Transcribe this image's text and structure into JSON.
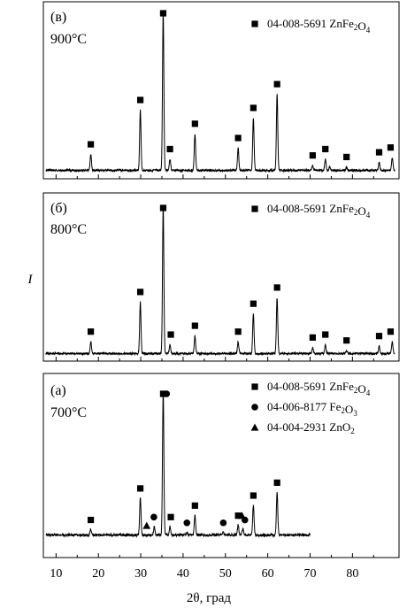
{
  "chart_data": {
    "type": "line",
    "xlabel": "2θ, град",
    "ylabel": "I",
    "xlim": [
      7,
      91
    ],
    "x_ticks": [
      10,
      20,
      30,
      40,
      50,
      60,
      70,
      80
    ],
    "panels": [
      {
        "letter": "(в)",
        "temperature": "900°C",
        "x_end": 90,
        "legend": [
          {
            "marker": "square",
            "label": "04-008-5691 ZnFe2O4"
          }
        ],
        "peaks": [
          {
            "x": 18.2,
            "h": 0.1
          },
          {
            "x": 29.9,
            "h": 0.38
          },
          {
            "x": 35.3,
            "h": 1.0
          },
          {
            "x": 36.9,
            "h": 0.07
          },
          {
            "x": 42.8,
            "h": 0.23
          },
          {
            "x": 53.0,
            "h": 0.14
          },
          {
            "x": 56.6,
            "h": 0.33
          },
          {
            "x": 62.2,
            "h": 0.48
          },
          {
            "x": 70.6,
            "h": 0.03
          },
          {
            "x": 73.6,
            "h": 0.07
          },
          {
            "x": 74.6,
            "h": 0.02
          },
          {
            "x": 78.6,
            "h": 0.02
          },
          {
            "x": 86.3,
            "h": 0.05
          },
          {
            "x": 89.4,
            "h": 0.08
          }
        ],
        "markers": [
          {
            "x": 18.2,
            "shape": "square"
          },
          {
            "x": 29.9,
            "shape": "square"
          },
          {
            "x": 35.3,
            "shape": "square"
          },
          {
            "x": 36.9,
            "shape": "square"
          },
          {
            "x": 42.8,
            "shape": "square"
          },
          {
            "x": 53.0,
            "shape": "square"
          },
          {
            "x": 56.6,
            "shape": "square"
          },
          {
            "x": 62.2,
            "shape": "square"
          },
          {
            "x": 70.6,
            "shape": "square"
          },
          {
            "x": 73.6,
            "shape": "square"
          },
          {
            "x": 78.6,
            "shape": "square"
          },
          {
            "x": 86.3,
            "shape": "square"
          },
          {
            "x": 89.0,
            "shape": "square"
          }
        ]
      },
      {
        "letter": "(б)",
        "temperature": "800°C",
        "x_end": 90,
        "legend": [
          {
            "marker": "square",
            "label": "04-008-5691 ZnFe2O4"
          }
        ],
        "peaks": [
          {
            "x": 18.2,
            "h": 0.08
          },
          {
            "x": 29.9,
            "h": 0.35
          },
          {
            "x": 35.3,
            "h": 1.0
          },
          {
            "x": 36.9,
            "h": 0.06
          },
          {
            "x": 42.8,
            "h": 0.12
          },
          {
            "x": 53.0,
            "h": 0.08
          },
          {
            "x": 56.6,
            "h": 0.27
          },
          {
            "x": 62.2,
            "h": 0.38
          },
          {
            "x": 70.6,
            "h": 0.04
          },
          {
            "x": 73.6,
            "h": 0.06
          },
          {
            "x": 78.6,
            "h": 0.02
          },
          {
            "x": 86.3,
            "h": 0.05
          },
          {
            "x": 89.4,
            "h": 0.08
          }
        ],
        "markers": [
          {
            "x": 18.2,
            "shape": "square"
          },
          {
            "x": 29.9,
            "shape": "square"
          },
          {
            "x": 35.3,
            "shape": "square"
          },
          {
            "x": 37.1,
            "shape": "square"
          },
          {
            "x": 42.8,
            "shape": "square"
          },
          {
            "x": 53.0,
            "shape": "square"
          },
          {
            "x": 56.6,
            "shape": "square"
          },
          {
            "x": 62.2,
            "shape": "square"
          },
          {
            "x": 70.6,
            "shape": "square"
          },
          {
            "x": 73.6,
            "shape": "square"
          },
          {
            "x": 78.6,
            "shape": "square"
          },
          {
            "x": 86.3,
            "shape": "square"
          },
          {
            "x": 89.0,
            "shape": "square"
          }
        ]
      },
      {
        "letter": "(a)",
        "temperature": "700°C",
        "x_end": 70,
        "legend": [
          {
            "marker": "square",
            "label": "04-008-5691 ZnFe2O4"
          },
          {
            "marker": "circle",
            "label": "04-006-8177 Fe2O3"
          },
          {
            "marker": "triangle",
            "label": "04-004-2931 ZnO2"
          }
        ],
        "peaks": [
          {
            "x": 18.2,
            "h": 0.04
          },
          {
            "x": 29.9,
            "h": 0.26
          },
          {
            "x": 33.2,
            "h": 0.06
          },
          {
            "x": 35.3,
            "h": 1.0
          },
          {
            "x": 36.9,
            "h": 0.06
          },
          {
            "x": 40.9,
            "h": 0.02
          },
          {
            "x": 42.8,
            "h": 0.14
          },
          {
            "x": 49.5,
            "h": 0.02
          },
          {
            "x": 53.0,
            "h": 0.07
          },
          {
            "x": 54.1,
            "h": 0.04
          },
          {
            "x": 56.6,
            "h": 0.21
          },
          {
            "x": 62.2,
            "h": 0.3
          }
        ],
        "markers": [
          {
            "x": 18.2,
            "shape": "square"
          },
          {
            "x": 29.9,
            "shape": "square"
          },
          {
            "x": 31.4,
            "shape": "triangle"
          },
          {
            "x": 33.1,
            "shape": "circle"
          },
          {
            "x": 35.3,
            "shape": "square"
          },
          {
            "x": 36.1,
            "shape": "circle"
          },
          {
            "x": 37.1,
            "shape": "square"
          },
          {
            "x": 40.9,
            "shape": "circle"
          },
          {
            "x": 42.8,
            "shape": "square"
          },
          {
            "x": 49.5,
            "shape": "circle"
          },
          {
            "x": 53.0,
            "shape": "square"
          },
          {
            "x": 53.9,
            "shape": "triangle"
          },
          {
            "x": 54.6,
            "shape": "circle"
          },
          {
            "x": 56.6,
            "shape": "square"
          },
          {
            "x": 62.2,
            "shape": "square"
          }
        ]
      }
    ]
  }
}
